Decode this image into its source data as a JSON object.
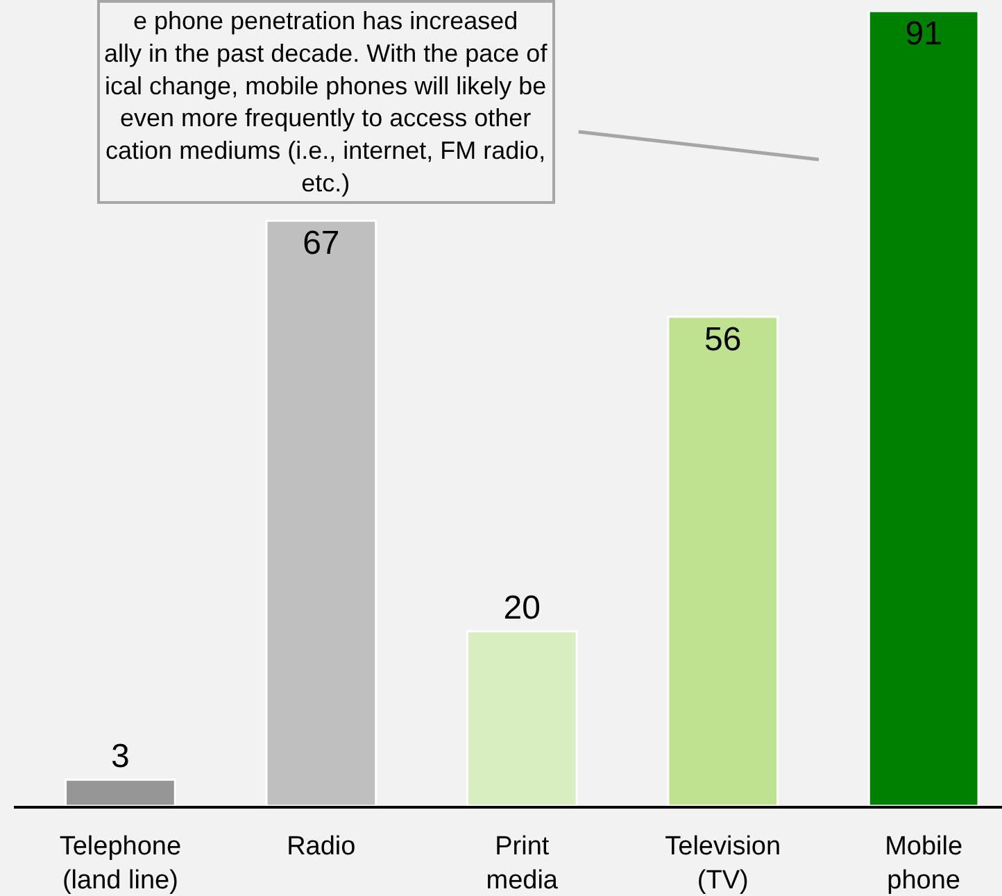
{
  "chart_data": {
    "type": "bar",
    "categories": [
      "Telephone\n(land line)",
      "Radio",
      "Print\nmedia",
      "Television\n(TV)",
      "Mobile\nphone"
    ],
    "values": [
      3,
      67,
      20,
      56,
      91
    ],
    "colors": [
      "#969696",
      "#bfbfbf",
      "#d8edc0",
      "#bfe291",
      "#008000"
    ],
    "data_labels": true,
    "annotations": [
      "e phone penetration has increased\nally in the past decade. With the pace of\nical change, mobile phones will likely be\neven more frequently to access other\ncation mediums (i.e., internet, FM radio,\netc.)"
    ]
  }
}
